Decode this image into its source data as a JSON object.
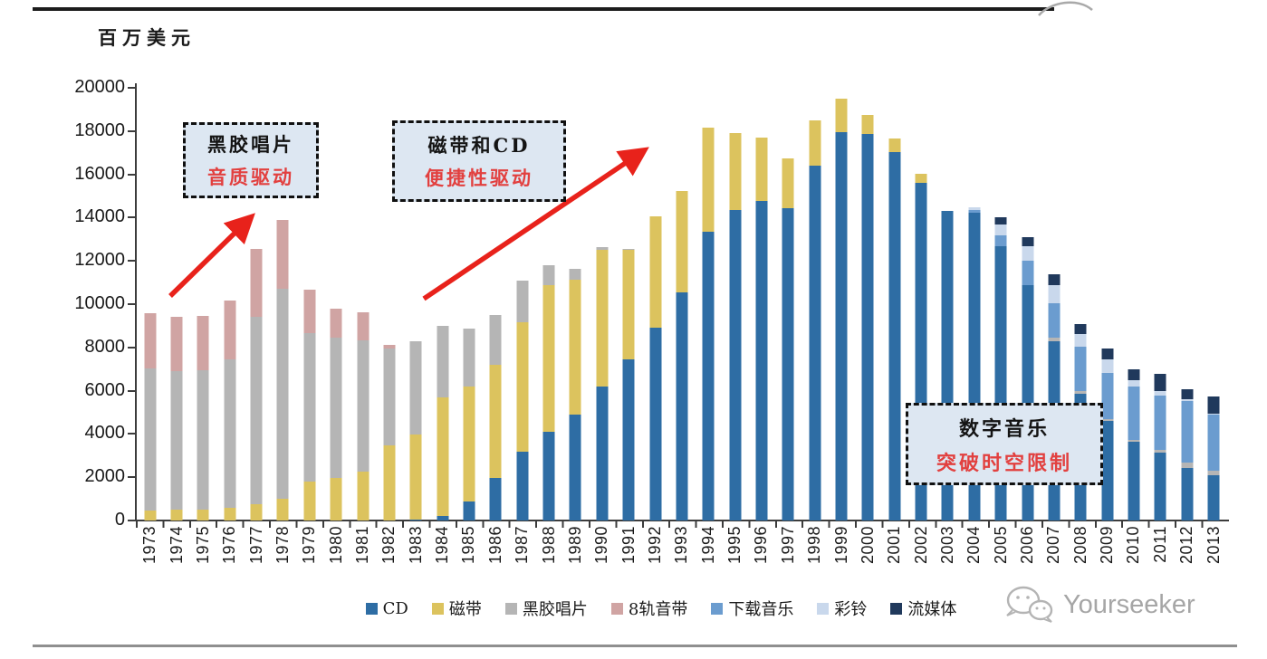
{
  "page": {
    "unit_label": "百万美元",
    "watermark_text": "Yourseeker"
  },
  "annotations": {
    "vinyl": {
      "line1": "黑胶唱片",
      "line2": "音质驱动"
    },
    "cassette": {
      "line1": "磁带和CD",
      "line2": "便捷性驱动"
    },
    "digital": {
      "line1": "数字音乐",
      "line2": "突破时空限制"
    }
  },
  "chart_data": {
    "type": "bar",
    "stacked": true,
    "title": "",
    "xlabel": "",
    "ylabel": "百万美元",
    "ylim": [
      0,
      20000
    ],
    "ytick_step": 2000,
    "yticks": [
      "0",
      "2000",
      "4000",
      "6000",
      "8000",
      "10000",
      "12000",
      "14000",
      "16000",
      "18000",
      "20000"
    ],
    "grid": false,
    "legend_position": "bottom",
    "accent_red": "#e8221b",
    "categories": [
      "1973",
      "1974",
      "1975",
      "1976",
      "1977",
      "1978",
      "1979",
      "1980",
      "1981",
      "1982",
      "1983",
      "1984",
      "1985",
      "1986",
      "1987",
      "1988",
      "1989",
      "1990",
      "1991",
      "1992",
      "1993",
      "1994",
      "1995",
      "1996",
      "1997",
      "1998",
      "1999",
      "2000",
      "2001",
      "2002",
      "2003",
      "2004",
      "2005",
      "2006",
      "2007",
      "2008",
      "2009",
      "2010",
      "2011",
      "2012",
      "2013"
    ],
    "series": [
      {
        "name": "CD",
        "color": "#2e6da4",
        "values": [
          0,
          0,
          0,
          0,
          0,
          0,
          0,
          0,
          0,
          0,
          40,
          200,
          880,
          1950,
          3170,
          4110,
          4880,
          6180,
          7460,
          8930,
          10530,
          13360,
          14360,
          14780,
          14430,
          16390,
          17950,
          17850,
          17020,
          15590,
          14300,
          14220,
          12690,
          10880,
          8270,
          5860,
          4600,
          3650,
          3140,
          2440,
          2090
        ]
      },
      {
        "name": "磁带",
        "color": "#dcc35e",
        "values": [
          460,
          490,
          520,
          590,
          770,
          1000,
          1810,
          1980,
          2270,
          3490,
          3940,
          5510,
          5300,
          5260,
          6000,
          6770,
          6240,
          6350,
          5040,
          5110,
          4700,
          4800,
          3560,
          2930,
          2310,
          2120,
          1550,
          910,
          620,
          420,
          0,
          0,
          0,
          0,
          0,
          0,
          0,
          0,
          0,
          0,
          0
        ]
      },
      {
        "name": "黑胶唱片",
        "color": "#b5b5b5",
        "values": [
          6560,
          6410,
          6410,
          6870,
          8640,
          9700,
          6860,
          6490,
          6060,
          4460,
          4320,
          3280,
          2700,
          2270,
          1920,
          930,
          520,
          120,
          50,
          40,
          0,
          0,
          0,
          0,
          0,
          0,
          0,
          0,
          0,
          0,
          0,
          0,
          0,
          0,
          170,
          140,
          90,
          90,
          140,
          250,
          210
        ]
      },
      {
        "name": "8轨音带",
        "color": "#d0a4a3",
        "values": [
          2560,
          2520,
          2510,
          2720,
          3140,
          3200,
          2000,
          1320,
          1290,
          180,
          0,
          0,
          0,
          0,
          0,
          0,
          0,
          0,
          0,
          0,
          0,
          0,
          0,
          0,
          0,
          0,
          0,
          0,
          0,
          0,
          0,
          0,
          0,
          0,
          0,
          0,
          0,
          0,
          0,
          0,
          0
        ]
      },
      {
        "name": "下载音乐",
        "color": "#6b9ccf",
        "values": [
          0,
          0,
          0,
          0,
          0,
          0,
          0,
          0,
          0,
          0,
          0,
          0,
          0,
          0,
          0,
          0,
          0,
          0,
          0,
          0,
          0,
          0,
          0,
          0,
          0,
          0,
          0,
          0,
          0,
          0,
          0,
          140,
          490,
          1120,
          1600,
          2030,
          2150,
          2450,
          2510,
          2840,
          2600
        ]
      },
      {
        "name": "彩铃",
        "color": "#c9d8ec",
        "values": [
          0,
          0,
          0,
          0,
          0,
          0,
          0,
          0,
          0,
          0,
          0,
          0,
          0,
          0,
          0,
          0,
          0,
          0,
          0,
          0,
          0,
          0,
          0,
          0,
          0,
          0,
          0,
          0,
          0,
          0,
          0,
          120,
          490,
          690,
          840,
          580,
          620,
          290,
          210,
          60,
          50
        ]
      },
      {
        "name": "流媒体",
        "color": "#20395c",
        "values": [
          0,
          0,
          0,
          0,
          0,
          0,
          0,
          0,
          0,
          0,
          0,
          0,
          0,
          0,
          0,
          0,
          0,
          0,
          0,
          0,
          0,
          0,
          0,
          0,
          0,
          0,
          0,
          0,
          0,
          0,
          0,
          0,
          350,
          420,
          490,
          460,
          490,
          490,
          770,
          480,
          770
        ]
      }
    ]
  }
}
